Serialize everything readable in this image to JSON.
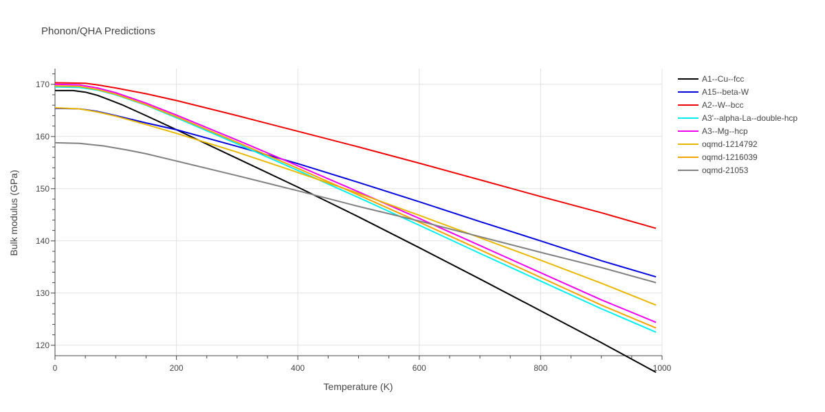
{
  "chart_data": {
    "type": "line",
    "title": "Phonon/QHA Predictions",
    "xlabel": "Temperature (K)",
    "ylabel": "Bulk modulus (GPa)",
    "xlim": [
      0,
      1000
    ],
    "ylim": [
      118,
      173
    ],
    "xticks": [
      0,
      200,
      400,
      600,
      800,
      1000
    ],
    "yticks": [
      120,
      130,
      140,
      150,
      160,
      170
    ],
    "grid": true,
    "legend_position": "right",
    "series": [
      {
        "name": "A1--Cu--fcc",
        "color": "#000000",
        "x": [
          0,
          30,
          50,
          70,
          90,
          110,
          150,
          200,
          300,
          400,
          500,
          600,
          700,
          800,
          900,
          990
        ],
        "y": [
          168.8,
          168.8,
          168.5,
          167.9,
          167.0,
          166.1,
          164.0,
          161.3,
          155.8,
          150.3,
          144.6,
          138.7,
          132.7,
          126.6,
          120.5,
          114.8
        ]
      },
      {
        "name": "A15--beta-W",
        "color": "#0000dd",
        "x": [
          0,
          40,
          70,
          100,
          150,
          200,
          300,
          400,
          500,
          600,
          700,
          800,
          900,
          990
        ],
        "y": [
          165.4,
          165.3,
          164.8,
          164.0,
          162.6,
          161.3,
          158.1,
          154.8,
          151.2,
          147.5,
          143.7,
          140.0,
          136.2,
          133.1
        ]
      },
      {
        "name": "A2--W--bcc",
        "color": "#ee0000",
        "x": [
          0,
          50,
          70,
          100,
          150,
          200,
          300,
          400,
          500,
          600,
          700,
          800,
          900,
          990
        ],
        "y": [
          170.3,
          170.2,
          169.9,
          169.3,
          168.2,
          166.9,
          164.0,
          161.0,
          158.0,
          154.9,
          151.7,
          148.5,
          145.4,
          142.4
        ]
      },
      {
        "name": "A3'--alpha-La--double-hcp",
        "color": "#00eeee",
        "x": [
          0,
          40,
          70,
          100,
          150,
          200,
          300,
          400,
          500,
          600,
          700,
          800,
          900,
          990
        ],
        "y": [
          169.5,
          169.4,
          168.9,
          168.0,
          166.0,
          163.6,
          158.6,
          153.5,
          148.3,
          143.0,
          137.6,
          132.3,
          127.0,
          122.5
        ]
      },
      {
        "name": "A3--Mg--hcp",
        "color": "#ee00ee",
        "x": [
          0,
          40,
          70,
          100,
          150,
          200,
          300,
          400,
          500,
          600,
          700,
          800,
          900,
          990
        ],
        "y": [
          170.0,
          169.9,
          169.3,
          168.4,
          166.4,
          164.1,
          159.3,
          154.4,
          149.4,
          144.3,
          139.1,
          133.9,
          128.7,
          124.4
        ]
      },
      {
        "name": "oqmd-1214792",
        "color": "#e8b800",
        "x": [
          0,
          40,
          70,
          100,
          150,
          200,
          300,
          400,
          500,
          600,
          700,
          800,
          900,
          990
        ],
        "y": [
          165.5,
          165.3,
          164.7,
          163.9,
          162.3,
          160.6,
          157.0,
          153.1,
          149.1,
          144.9,
          140.6,
          136.3,
          131.9,
          127.7
        ]
      },
      {
        "name": "oqmd-1216039",
        "color": "#f5a300",
        "x": [
          0,
          40,
          70,
          100,
          150,
          200,
          300,
          400,
          500,
          600,
          700,
          800,
          900,
          990
        ],
        "y": [
          169.7,
          169.6,
          169.0,
          168.1,
          166.1,
          163.8,
          158.9,
          153.9,
          148.8,
          143.6,
          138.3,
          133.0,
          127.7,
          123.3
        ]
      },
      {
        "name": "oqmd-21053",
        "color": "#808080",
        "x": [
          0,
          40,
          80,
          120,
          150,
          200,
          300,
          400,
          500,
          600,
          700,
          800,
          900,
          990
        ],
        "y": [
          158.8,
          158.7,
          158.2,
          157.4,
          156.7,
          155.3,
          152.5,
          149.6,
          146.6,
          143.8,
          140.8,
          137.8,
          134.9,
          132.0
        ]
      }
    ]
  }
}
